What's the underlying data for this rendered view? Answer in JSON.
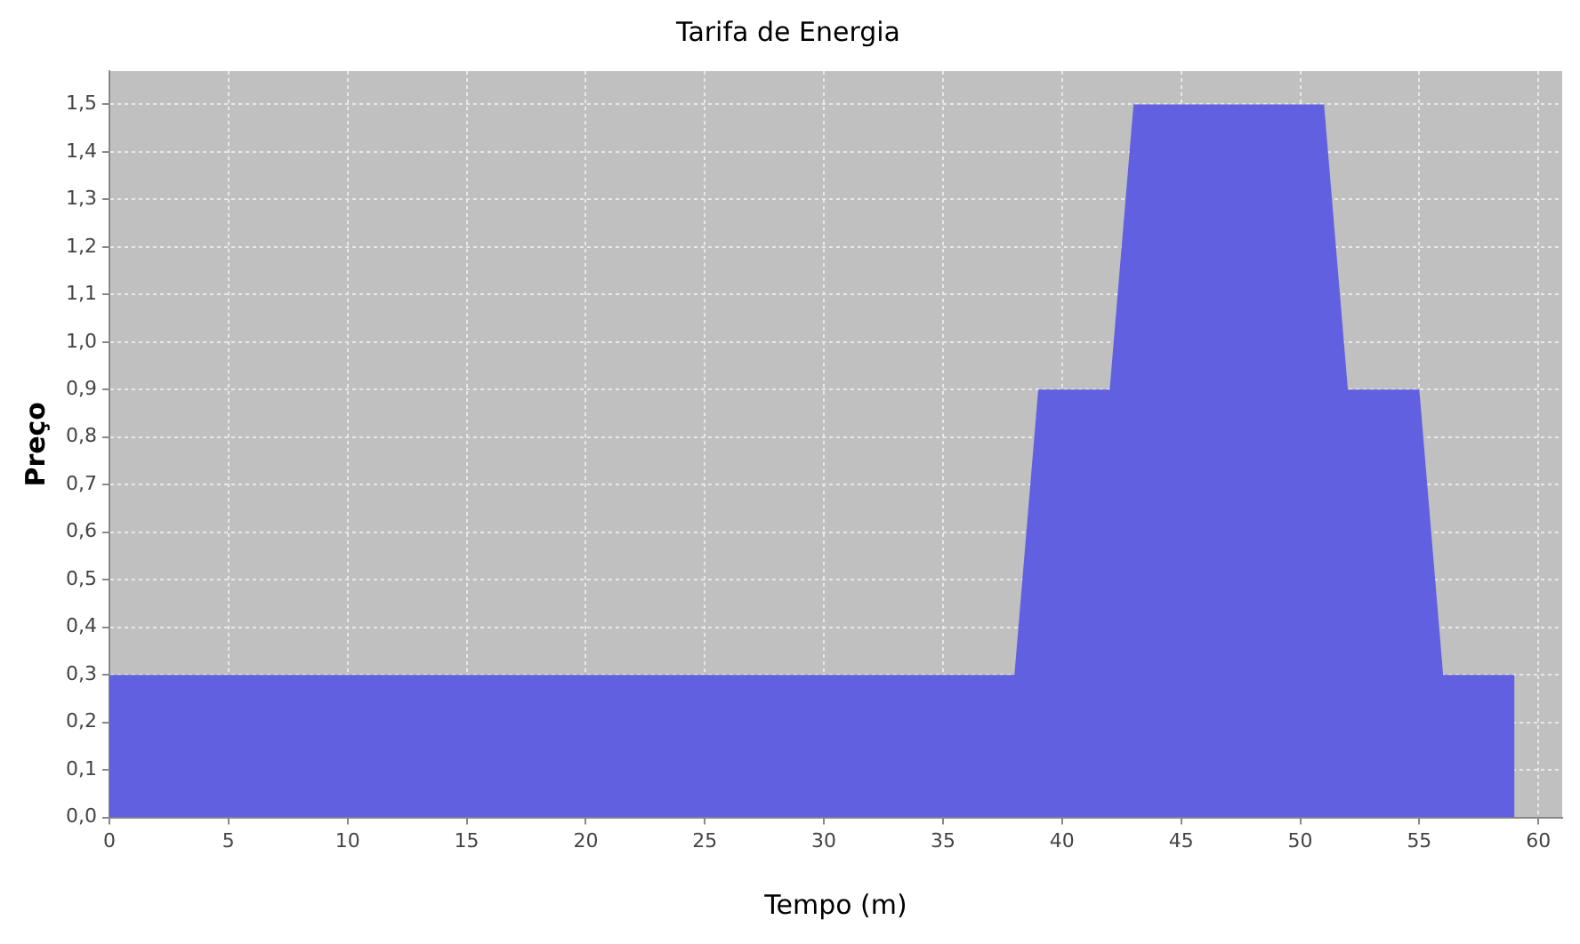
{
  "chart_data": {
    "type": "area",
    "title": "Tarifa de Energia",
    "xlabel": "Tempo (m)",
    "ylabel": "Preço",
    "x": [
      0,
      38,
      39,
      42,
      43,
      51,
      52,
      55,
      56,
      59
    ],
    "series": [
      {
        "color": "#6060e0",
        "values": [
          0.3,
          0.3,
          0.9,
          0.9,
          1.5,
          1.5,
          0.9,
          0.9,
          0.3,
          0.3
        ]
      }
    ],
    "xlim": [
      0,
      61
    ],
    "xticks": [
      0,
      5,
      10,
      15,
      20,
      25,
      30,
      35,
      40,
      45,
      50,
      55,
      60
    ],
    "ylim": [
      0,
      1.57
    ],
    "yticks": [
      {
        "value": 0,
        "label": "0,0"
      },
      {
        "value": 0.1,
        "label": "0,1"
      },
      {
        "value": 0.2,
        "label": "0,2"
      },
      {
        "value": 0.3,
        "label": "0,3"
      },
      {
        "value": 0.4,
        "label": "0,4"
      },
      {
        "value": 0.5,
        "label": "0,5"
      },
      {
        "value": 0.6,
        "label": "0,6"
      },
      {
        "value": 0.7,
        "label": "0,7"
      },
      {
        "value": 0.8,
        "label": "0,8"
      },
      {
        "value": 0.9,
        "label": "0,9"
      },
      {
        "value": 1.0,
        "label": "1,0"
      },
      {
        "value": 1.1,
        "label": "1,1"
      },
      {
        "value": 1.2,
        "label": "1,2"
      },
      {
        "value": 1.3,
        "label": "1,3"
      },
      {
        "value": 1.4,
        "label": "1,4"
      },
      {
        "value": 1.5,
        "label": "1,5"
      }
    ],
    "grid": true,
    "marker": "none"
  }
}
